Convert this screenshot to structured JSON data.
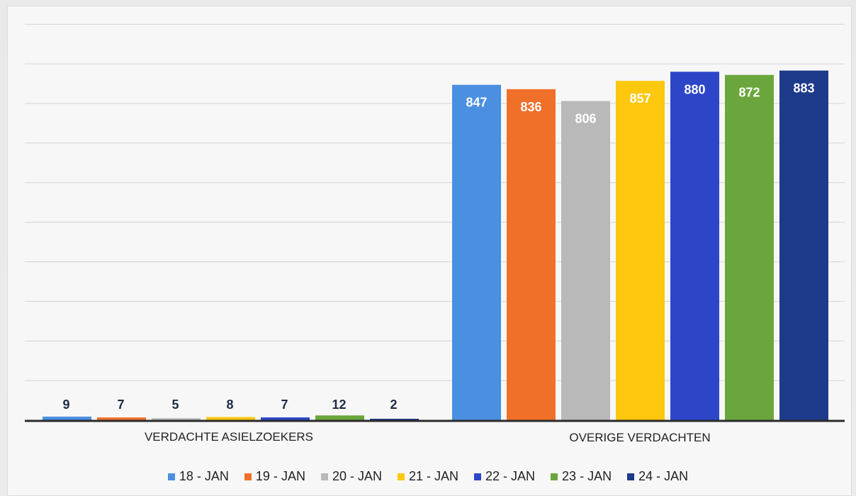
{
  "chart_data": {
    "type": "bar",
    "categories": [
      "VERDACHTE ASIELZOEKERS",
      "OVERIGE VERDACHTEN"
    ],
    "series": [
      {
        "name": "18 - JAN",
        "values": [
          9,
          847
        ],
        "color": "#4a8fe0"
      },
      {
        "name": "19 - JAN",
        "values": [
          7,
          836
        ],
        "color": "#f07029"
      },
      {
        "name": "20 - JAN",
        "values": [
          5,
          806
        ],
        "color": "#b9b9b9"
      },
      {
        "name": "21 - JAN",
        "values": [
          8,
          857
        ],
        "color": "#fdc80e"
      },
      {
        "name": "22 - JAN",
        "values": [
          7,
          880
        ],
        "color": "#2d46c8"
      },
      {
        "name": "23 - JAN",
        "values": [
          12,
          872
        ],
        "color": "#6aa63c"
      },
      {
        "name": "24 - JAN",
        "values": [
          2,
          883
        ],
        "color": "#1e3a8a"
      }
    ],
    "title": "",
    "xlabel": "",
    "ylabel": "",
    "ylim": [
      0,
      1000
    ],
    "grid": true,
    "legend": "bottom"
  }
}
